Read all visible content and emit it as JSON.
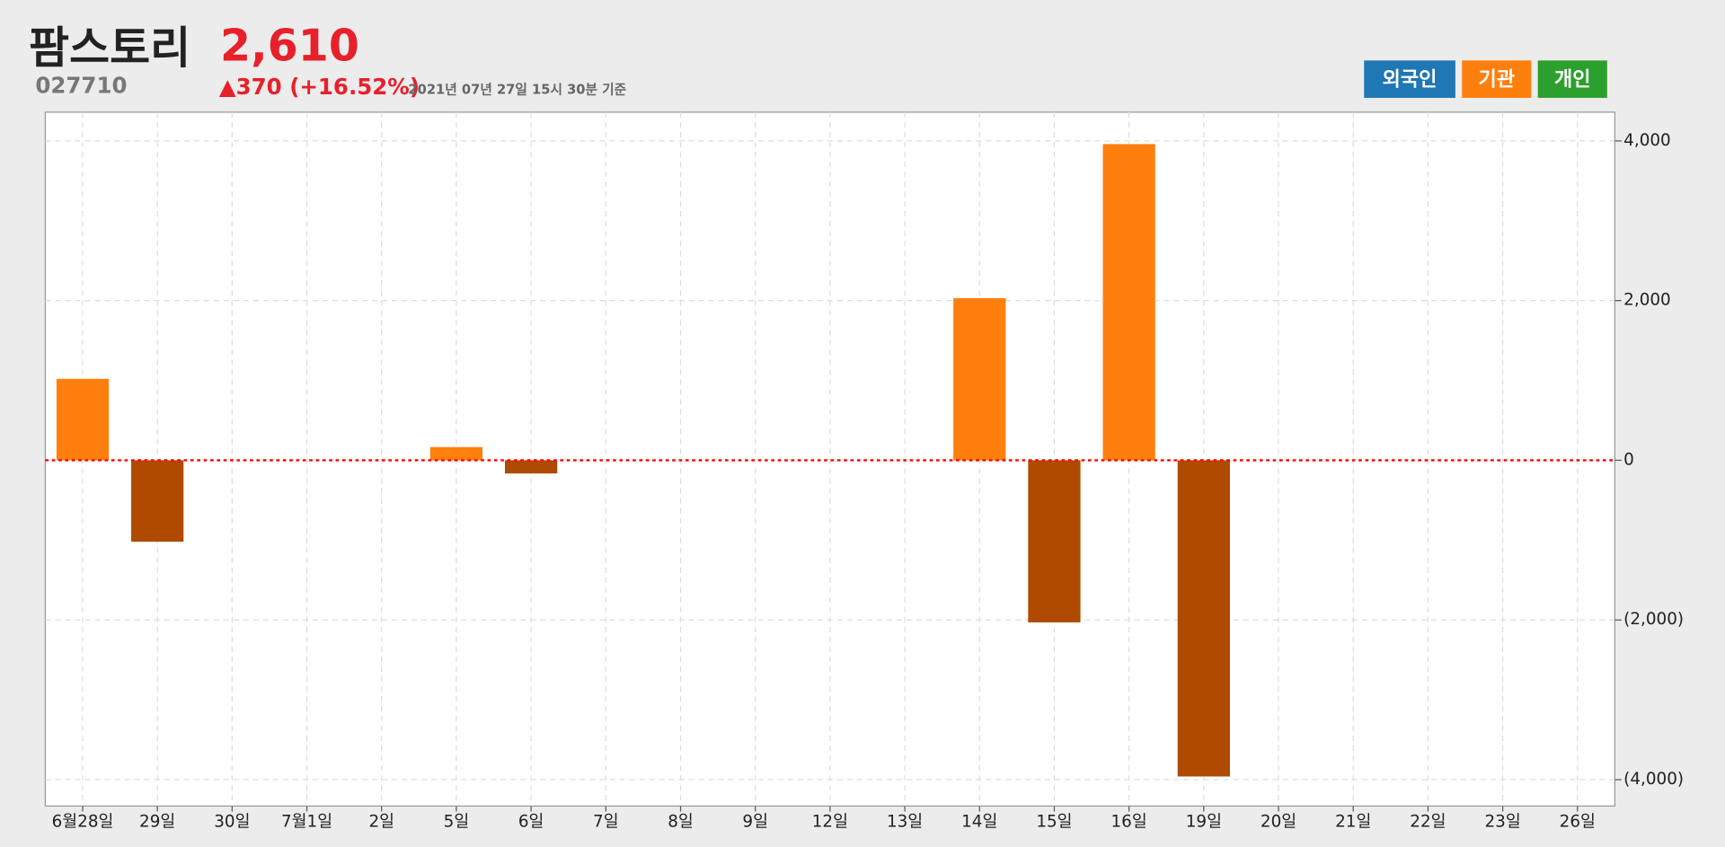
{
  "header": {
    "title": "팜스토리",
    "price": "2,610",
    "code": "027710",
    "change": "▲370 (+16.52%)",
    "timestamp": "2021년 07년 27일 15시 30분 기준"
  },
  "buttons": [
    {
      "label": "외국인",
      "color": "#1f77b4"
    },
    {
      "label": "기관",
      "color": "#ff7f0e"
    },
    {
      "label": "개인",
      "color": "#2ca02c"
    }
  ],
  "chart_data": {
    "type": "bar",
    "categories": [
      "6월28일",
      "29일",
      "30일",
      "7월1일",
      "2일",
      "5일",
      "6일",
      "7일",
      "8일",
      "9일",
      "12일",
      "13일",
      "14일",
      "15일",
      "16일",
      "19일",
      "20일",
      "21일",
      "22일",
      "23일",
      "26일"
    ],
    "values": [
      1020,
      -1020,
      0,
      0,
      0,
      165,
      -165,
      0,
      0,
      0,
      0,
      0,
      2030,
      -2030,
      3960,
      -3960,
      0,
      0,
      0,
      0,
      0
    ],
    "positive_color": "#ff7f0e",
    "negative_color": "#b04a00",
    "ylim": [
      -4330,
      4360
    ],
    "yticks": [
      {
        "value": 4000,
        "label": "4,000"
      },
      {
        "value": 2000,
        "label": "2,000"
      },
      0,
      {
        "value": -2000,
        "label": "(2,000)"
      },
      {
        "value": -4000,
        "label": "(4,000)"
      }
    ],
    "grid": true,
    "zero_line_color": "#ff0000"
  }
}
